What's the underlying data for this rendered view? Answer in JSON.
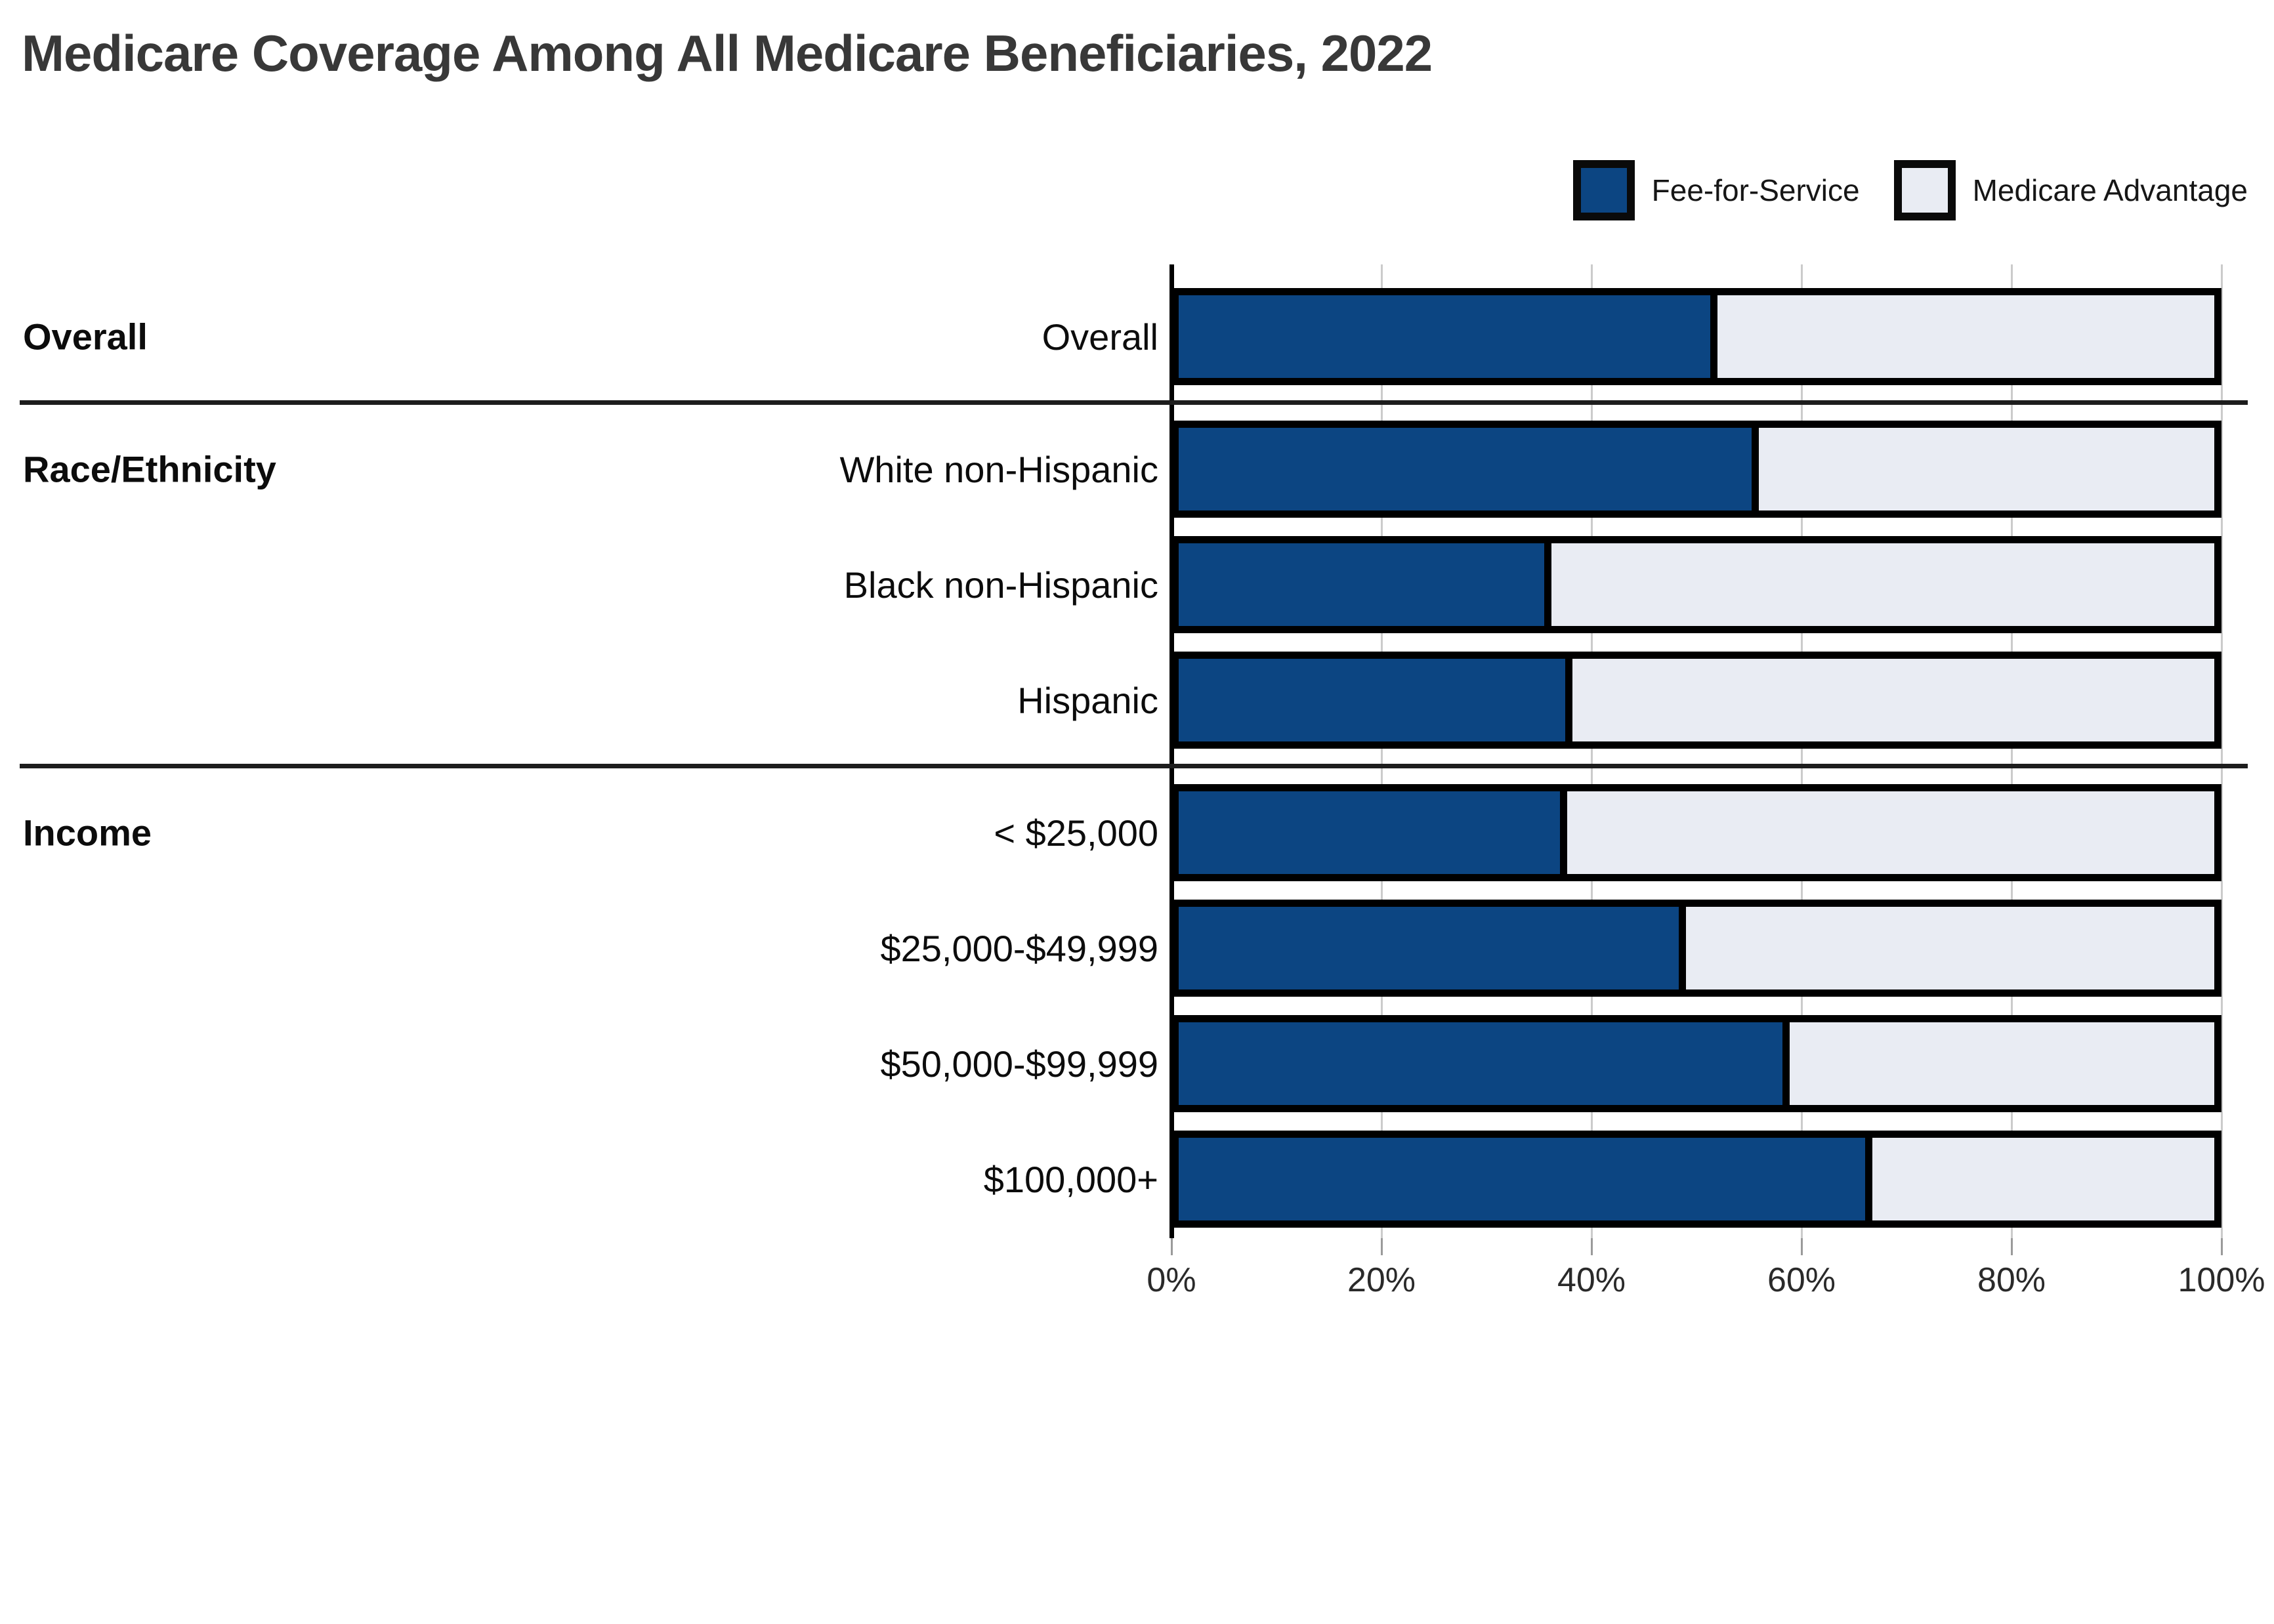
{
  "title": "Medicare Coverage Among All Medicare Beneficiaries, 2022",
  "legend": {
    "items": [
      {
        "label": "Fee-for-Service",
        "color": "#0C4582"
      },
      {
        "label": "Medicare Advantage",
        "color": "#E9ECF3"
      }
    ]
  },
  "chart_data": {
    "type": "bar",
    "orientation": "horizontal",
    "stacked": true,
    "unit": "percent",
    "title": "Medicare Coverage Among All Medicare Beneficiaries, 2022",
    "xlabel": "",
    "ylabel": "",
    "xlim": [
      0,
      100
    ],
    "x_ticks": [
      "0%",
      "20%",
      "40%",
      "60%",
      "80%",
      "100%"
    ],
    "x_tick_values": [
      0,
      20,
      40,
      60,
      80,
      100
    ],
    "grid": true,
    "legend_position": "top-right",
    "series": [
      "Fee-for-Service",
      "Medicare Advantage"
    ],
    "colors": {
      "Fee-for-Service": "#0C4582",
      "Medicare Advantage": "#E9ECF3"
    },
    "bar_border_color": "#000000",
    "groups": [
      {
        "label": "Overall",
        "rows": [
          {
            "label": "Overall",
            "values": [
              52,
              48
            ]
          }
        ]
      },
      {
        "label": "Race/Ethnicity",
        "rows": [
          {
            "label": "White non-Hispanic",
            "values": [
              56,
              44
            ]
          },
          {
            "label": "Black non-Hispanic",
            "values": [
              36,
              64
            ]
          },
          {
            "label": "Hispanic",
            "values": [
              38,
              62
            ]
          }
        ]
      },
      {
        "label": "Income",
        "rows": [
          {
            "label": "< $25,000",
            "values": [
              37.5,
              62.5
            ]
          },
          {
            "label": "$25,000-$49,999",
            "values": [
              49,
              51
            ]
          },
          {
            "label": "$50,000-$99,999",
            "values": [
              59,
              41
            ]
          },
          {
            "label": "$100,000+",
            "values": [
              67,
              33
            ]
          }
        ]
      }
    ]
  }
}
